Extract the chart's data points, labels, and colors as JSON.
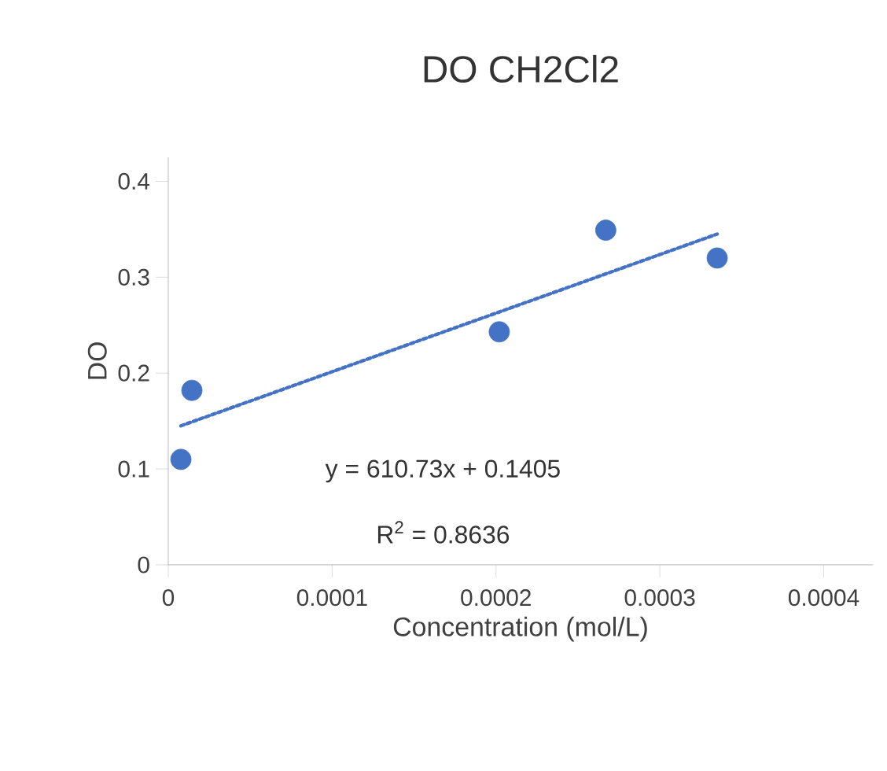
{
  "chart_data": {
    "type": "scatter",
    "title": "DO CH2Cl2",
    "xlabel": "Concentration (mol/L)",
    "ylabel": "DO",
    "xlim": [
      0,
      0.00043
    ],
    "ylim": [
      0,
      0.425
    ],
    "xticks": [
      0,
      0.0001,
      0.0002,
      0.0003,
      0.0004
    ],
    "yticks": [
      0,
      0.1,
      0.2,
      0.3,
      0.4
    ],
    "series": [
      {
        "color": "#4472c4",
        "marker": "circle",
        "x": [
          7.7e-06,
          1.44e-05,
          0.000202,
          0.000267,
          0.000335
        ],
        "values": [
          0.11,
          0.182,
          0.243,
          0.349,
          0.32
        ]
      },
      {
        "type": "line",
        "color": "#4472c4",
        "marker": "none",
        "line_style": "dotted",
        "x": [
          7.7e-06,
          0.000335
        ],
        "values": [
          0.145,
          0.345
        ]
      }
    ],
    "annotations": [
      "y = 610.73x + 0.1405",
      "R$^{2}$ = 0.8636"
    ]
  }
}
